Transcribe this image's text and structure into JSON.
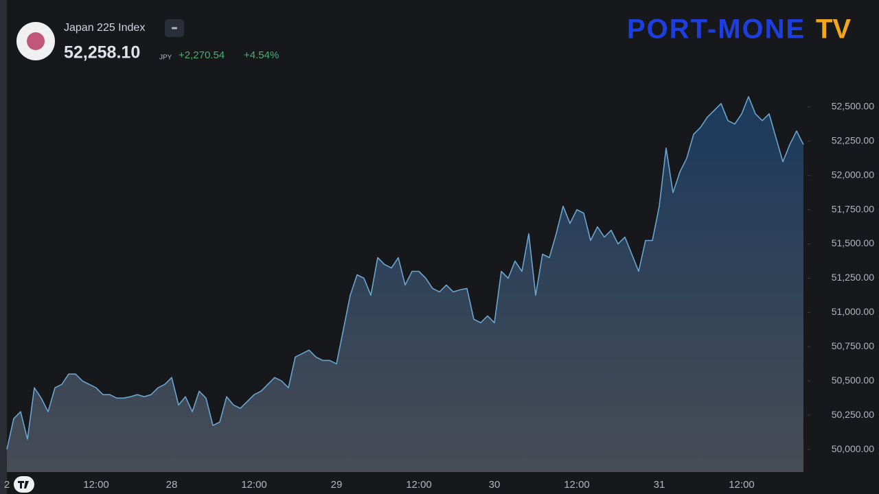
{
  "header": {
    "symbol": "Japan 225 Index",
    "price": "52,258.10",
    "currency": "JPY",
    "change": "+2,270.54",
    "change_percent": "+4.54%"
  },
  "logo": {
    "name": "PORT-MONE",
    "suffix": "TV"
  },
  "chart_data": {
    "type": "area",
    "color": "#6aa6d0",
    "categories": [
      "2",
      null,
      null,
      null,
      null,
      null,
      null,
      null,
      null,
      null,
      null,
      null,
      null,
      "12:00",
      null,
      null,
      null,
      null,
      null,
      null,
      null,
      null,
      null,
      null,
      "28",
      null,
      null,
      null,
      null,
      null,
      null,
      null,
      null,
      null,
      null,
      null,
      "12:00",
      null,
      null,
      null,
      null,
      null,
      null,
      null,
      null,
      null,
      null,
      null,
      "29",
      null,
      null,
      null,
      null,
      null,
      null,
      null,
      null,
      null,
      null,
      null,
      "12:00",
      null,
      null,
      null,
      null,
      null,
      null,
      null,
      null,
      null,
      null,
      "30",
      null,
      null,
      null,
      null,
      null,
      null,
      null,
      null,
      null,
      null,
      null,
      "12:00",
      null,
      null,
      null,
      null,
      null,
      null,
      null,
      null,
      null,
      null,
      null,
      "31",
      null,
      null,
      null,
      null,
      null,
      null,
      null,
      null,
      null,
      null,
      null,
      "12:00",
      null,
      null,
      null,
      null,
      null,
      null,
      null,
      null,
      null
    ],
    "values": [
      50000,
      50225,
      50275,
      50075,
      50450,
      50375,
      50275,
      50450,
      50475,
      50550,
      50550,
      50500,
      50475,
      50450,
      50400,
      50400,
      50375,
      50375,
      50385,
      50400,
      50385,
      50400,
      50450,
      50475,
      50525,
      50325,
      50385,
      50275,
      50425,
      50375,
      50175,
      50200,
      50385,
      50325,
      50300,
      50350,
      50400,
      50425,
      50475,
      50525,
      50500,
      50450,
      50675,
      50700,
      50725,
      50675,
      50650,
      50650,
      50625,
      50875,
      51125,
      51275,
      51250,
      51125,
      51400,
      51350,
      51325,
      51400,
      51200,
      51300,
      51300,
      51250,
      51175,
      51150,
      51200,
      51150,
      51165,
      51175,
      50950,
      50925,
      50975,
      50925,
      51300,
      51250,
      51375,
      51300,
      51575,
      51125,
      51425,
      51400,
      51575,
      51775,
      51650,
      51750,
      51725,
      51525,
      51625,
      51550,
      51600,
      51500,
      51550,
      51425,
      51300,
      51525,
      51525,
      51775,
      52200,
      51875,
      52025,
      52125,
      52300,
      52350,
      52425,
      52475,
      52525,
      52400,
      52375,
      52450,
      52575,
      52450,
      52400,
      52450,
      52275,
      52100,
      52225,
      52325,
      52225
    ],
    "ylim": [
      49850,
      52900
    ],
    "yticks": [
      {
        "value": 50000,
        "label": "50,000.00"
      },
      {
        "value": 50250,
        "label": "50,250.00"
      },
      {
        "value": 50500,
        "label": "50,500.00"
      },
      {
        "value": 50750,
        "label": "50,750.00"
      },
      {
        "value": 51000,
        "label": "51,000.00"
      },
      {
        "value": 51250,
        "label": "51,250.00"
      },
      {
        "value": 51500,
        "label": "51,500.00"
      },
      {
        "value": 51750,
        "label": "51,750.00"
      },
      {
        "value": 52000,
        "label": "52,000.00"
      },
      {
        "value": 52250,
        "label": "52,250.00"
      },
      {
        "value": 52500,
        "label": "52,500.00"
      }
    ],
    "grid": false
  }
}
